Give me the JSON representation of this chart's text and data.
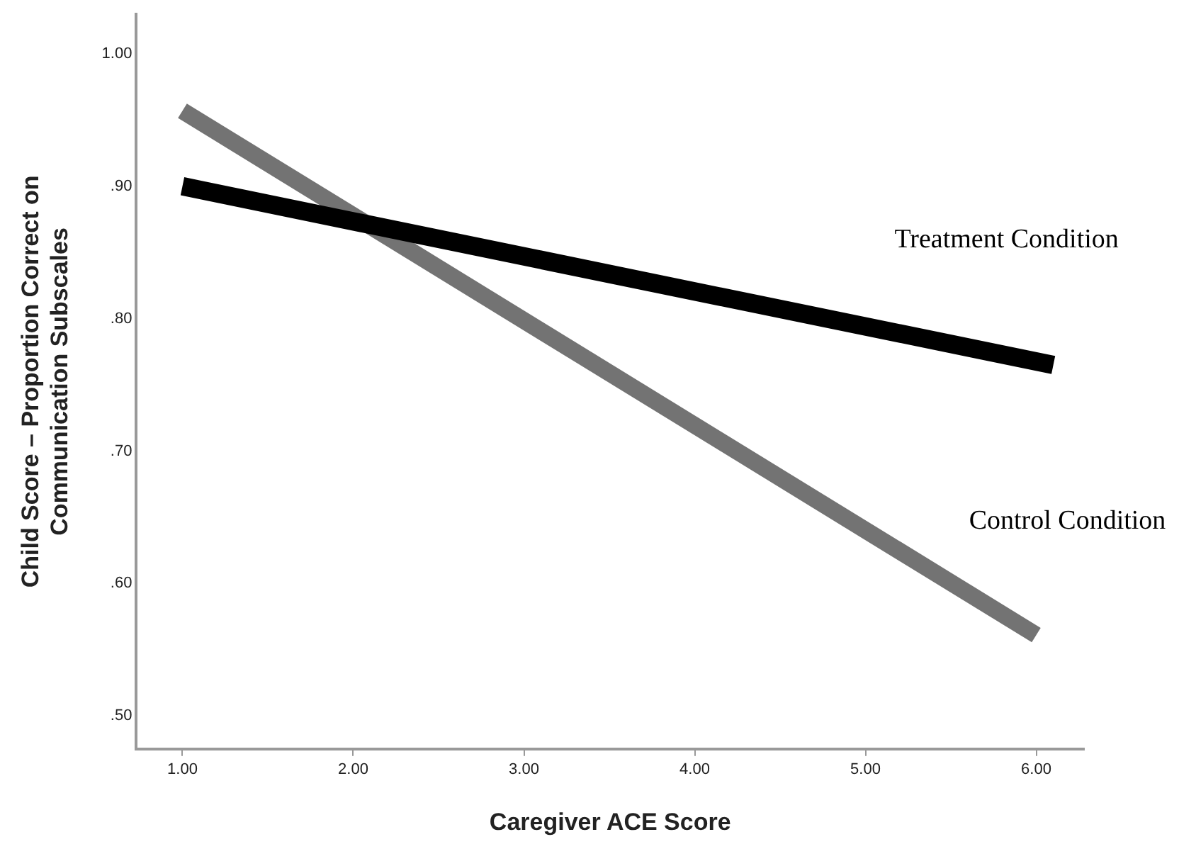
{
  "chart_data": {
    "type": "line",
    "xlabel": "Caregiver ACE Score",
    "ylabel": "Child Score – Proportion Correct on\nCommunication Subscales",
    "xlim": [
      0.73,
      6.28
    ],
    "ylim": [
      0.475,
      1.03
    ],
    "xticks": [
      {
        "value": 1,
        "label": "1.00"
      },
      {
        "value": 2,
        "label": "2.00"
      },
      {
        "value": 3,
        "label": "3.00"
      },
      {
        "value": 4,
        "label": "4.00"
      },
      {
        "value": 5,
        "label": "5.00"
      },
      {
        "value": 6,
        "label": "6.00"
      }
    ],
    "yticks": [
      {
        "value": 0.5,
        "label": ".50"
      },
      {
        "value": 0.6,
        "label": ".60"
      },
      {
        "value": 0.7,
        "label": ".70"
      },
      {
        "value": 0.8,
        "label": ".80"
      },
      {
        "value": 0.9,
        "label": ".90"
      },
      {
        "value": 1,
        "label": "1.00"
      }
    ],
    "grid": false,
    "legend": false,
    "marker": "none",
    "line_style": "solid",
    "series": [
      {
        "name": "Treatment Condition",
        "color": "#000000",
        "x": [
          1,
          6.1
        ],
        "values": [
          0.9,
          0.765
        ]
      },
      {
        "name": "Control Condition",
        "color": "#737373",
        "x": [
          1,
          6
        ],
        "values": [
          0.957,
          0.561
        ]
      }
    ]
  }
}
